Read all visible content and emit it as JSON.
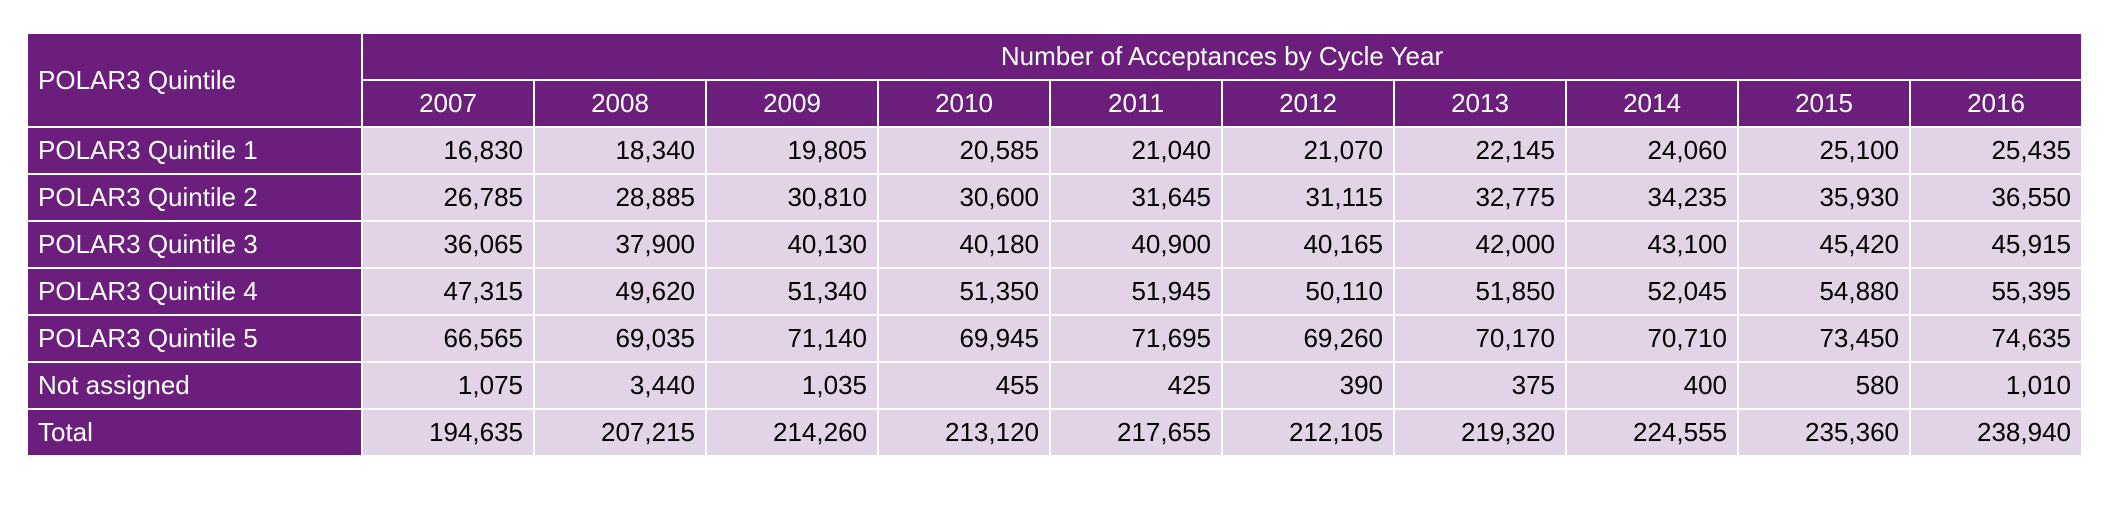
{
  "chart_data": {
    "type": "table",
    "title": "",
    "corner_header": "POLAR3 Quintile",
    "column_group_header": "Number of Acceptances by Cycle Year",
    "columns": [
      "2007",
      "2008",
      "2009",
      "2010",
      "2011",
      "2012",
      "2013",
      "2014",
      "2015",
      "2016"
    ],
    "rows": [
      {
        "label": "POLAR3 Quintile 1",
        "values": [
          "16,830",
          "18,340",
          "19,805",
          "20,585",
          "21,040",
          "21,070",
          "22,145",
          "24,060",
          "25,100",
          "25,435"
        ]
      },
      {
        "label": "POLAR3 Quintile 2",
        "values": [
          "26,785",
          "28,885",
          "30,810",
          "30,600",
          "31,645",
          "31,115",
          "32,775",
          "34,235",
          "35,930",
          "36,550"
        ]
      },
      {
        "label": "POLAR3 Quintile 3",
        "values": [
          "36,065",
          "37,900",
          "40,130",
          "40,180",
          "40,900",
          "40,165",
          "42,000",
          "43,100",
          "45,420",
          "45,915"
        ]
      },
      {
        "label": "POLAR3 Quintile 4",
        "values": [
          "47,315",
          "49,620",
          "51,340",
          "51,350",
          "51,945",
          "50,110",
          "51,850",
          "52,045",
          "54,880",
          "55,395"
        ]
      },
      {
        "label": "POLAR3 Quintile 5",
        "values": [
          "66,565",
          "69,035",
          "71,140",
          "69,945",
          "71,695",
          "69,260",
          "70,170",
          "70,710",
          "73,450",
          "74,635"
        ]
      },
      {
        "label": "Not assigned",
        "values": [
          "1,075",
          "3,440",
          "1,035",
          "455",
          "425",
          "390",
          "375",
          "400",
          "580",
          "1,010"
        ]
      },
      {
        "label": "Total",
        "values": [
          "194,635",
          "207,215",
          "214,260",
          "213,120",
          "217,655",
          "212,105",
          "219,320",
          "224,555",
          "235,360",
          "238,940"
        ]
      }
    ],
    "colors": {
      "header_bg": "#6b1e7c",
      "header_text": "#ffffff",
      "cell_bg": "#e2d3e6",
      "cell_text": "#000000",
      "grid": "#ffffff"
    }
  }
}
